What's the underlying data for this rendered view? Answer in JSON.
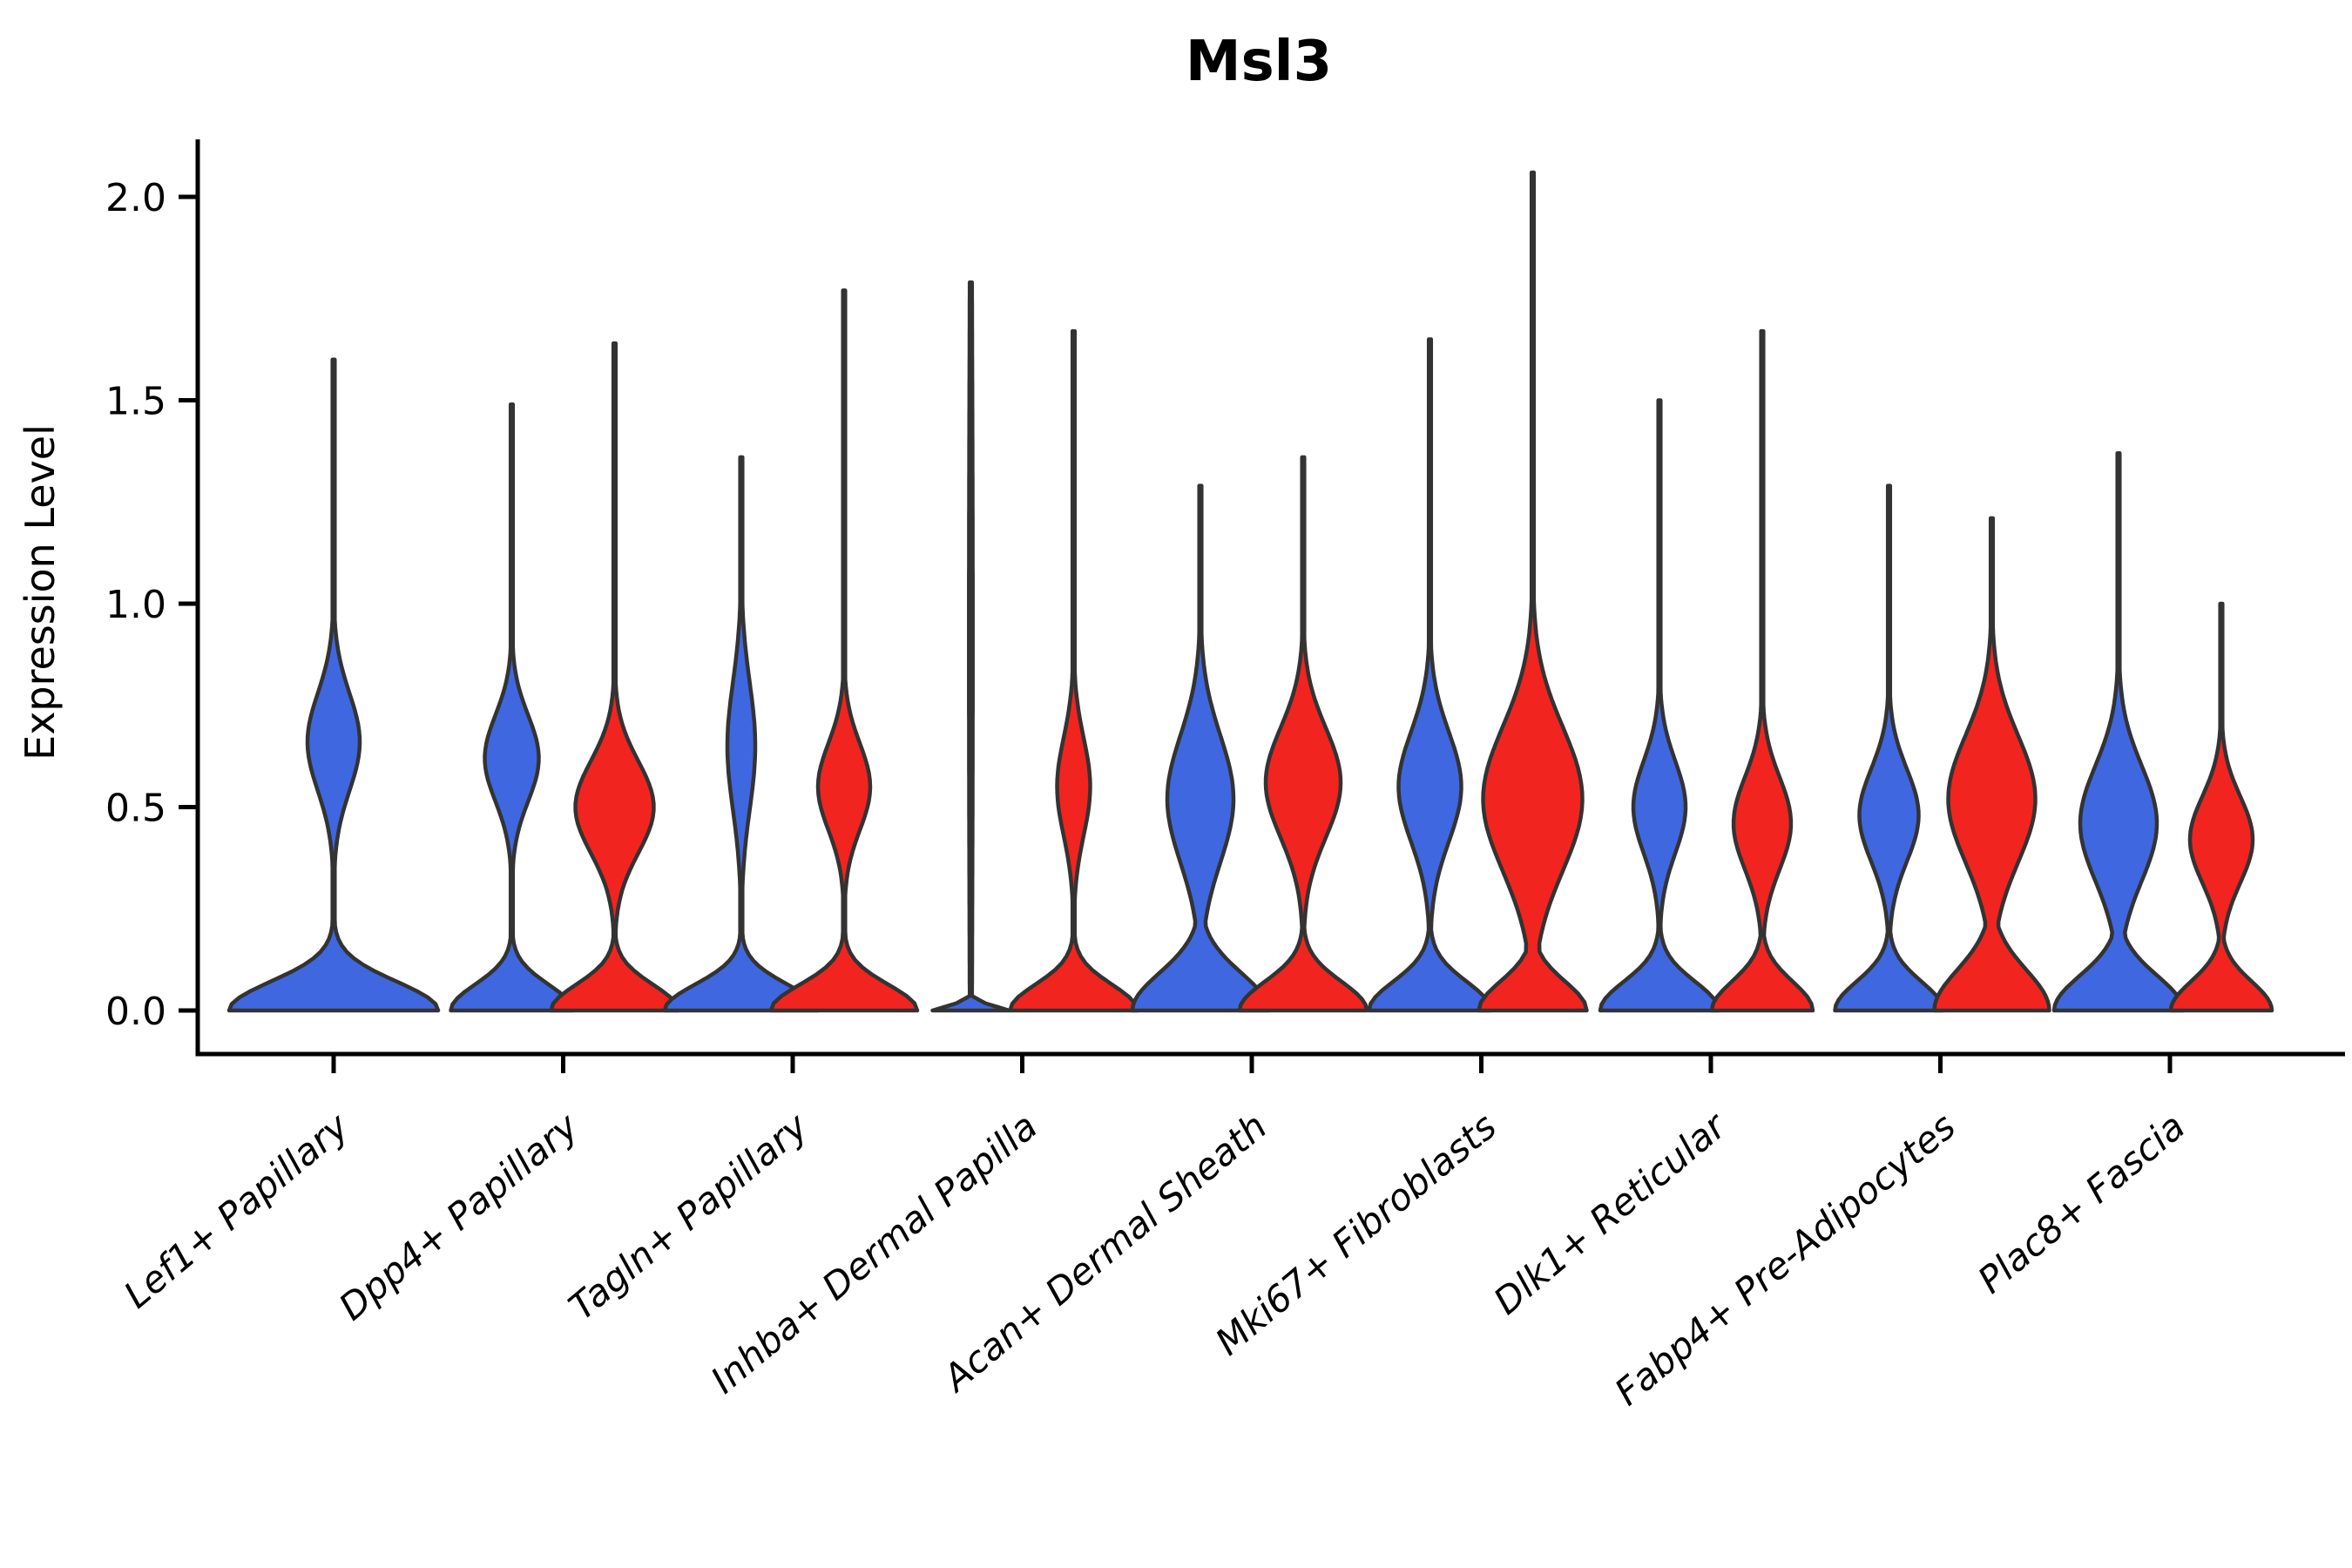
{
  "chart_data": {
    "type": "violin",
    "title": "Msl3",
    "ylabel": "Expression Level",
    "xlabel": "",
    "ylim": [
      0.0,
      2.1
    ],
    "y_ticks": [
      0.0,
      0.5,
      1.0,
      1.5,
      2.0
    ],
    "y_tick_labels": [
      "0.0",
      "0.5",
      "1.0",
      "1.5",
      "2.0"
    ],
    "legend": "none",
    "grid": false,
    "split_series": [
      "blue",
      "red"
    ],
    "palette": {
      "blue": "#3F67E0",
      "red": "#F2241F",
      "outline": "#333333",
      "axis": "#000000"
    },
    "categories": [
      "Lef1+ Papillary",
      "Dpp4+ Papillary",
      "Tagln+ Papillary",
      "Inhba+ Dermal Papilla",
      "Acan+ Dermal Sheath",
      "Mki67+ Fibroblasts",
      "Dlk1+ Reticular",
      "Fabp4+ Pre-Adipocytes",
      "Plac8+ Fascia"
    ],
    "groups": [
      {
        "label": "Lef1+ Papillary",
        "violins": [
          {
            "split": "blue",
            "max_expression": 1.6,
            "base_halfwidth": 120,
            "base_sigma": 0.1,
            "bulge_halfwidth": 30,
            "bulge_center": 0.66,
            "bulge_sigma": 0.17
          }
        ]
      },
      {
        "label": "Dpp4+ Papillary",
        "violins": [
          {
            "split": "blue",
            "max_expression": 1.49,
            "base_halfwidth": 70,
            "base_sigma": 0.09,
            "bulge_halfwidth": 31,
            "bulge_center": 0.62,
            "bulge_sigma": 0.15
          },
          {
            "split": "red",
            "max_expression": 1.64,
            "base_halfwidth": 73,
            "base_sigma": 0.09,
            "bulge_halfwidth": 45,
            "bulge_center": 0.5,
            "bulge_sigma": 0.16
          }
        ]
      },
      {
        "label": "Tagln+ Papillary",
        "violins": [
          {
            "split": "blue",
            "max_expression": 1.36,
            "base_halfwidth": 88,
            "base_sigma": 0.09,
            "bulge_halfwidth": 16,
            "bulge_center": 0.65,
            "bulge_sigma": 0.22
          },
          {
            "split": "red",
            "max_expression": 1.77,
            "base_halfwidth": 84,
            "base_sigma": 0.09,
            "bulge_halfwidth": 30,
            "bulge_center": 0.55,
            "bulge_sigma": 0.15
          }
        ]
      },
      {
        "label": "Inhba+ Dermal Papilla",
        "violins": [
          {
            "split": "blue",
            "max_expression": 1.79,
            "base_halfwidth": 44,
            "base_sigma": 0.018,
            "bulge_halfwidth": 2.2,
            "bulge_center": 0.9,
            "bulge_sigma": 1.2
          },
          {
            "split": "red",
            "max_expression": 1.67,
            "base_halfwidth": 73,
            "base_sigma": 0.09,
            "bulge_halfwidth": 19,
            "bulge_center": 0.55,
            "bulge_sigma": 0.17
          }
        ]
      },
      {
        "label": "Acan+ Dermal Sheath",
        "violins": [
          {
            "split": "blue",
            "max_expression": 1.29,
            "base_halfwidth": 78,
            "base_sigma": 0.13,
            "bulge_halfwidth": 38,
            "bulge_center": 0.52,
            "bulge_sigma": 0.22
          },
          {
            "split": "red",
            "max_expression": 1.36,
            "base_halfwidth": 73,
            "base_sigma": 0.1,
            "bulge_halfwidth": 43,
            "bulge_center": 0.56,
            "bulge_sigma": 0.19
          }
        ]
      },
      {
        "label": "Mki67+ Fibroblasts",
        "violins": [
          {
            "split": "blue",
            "max_expression": 1.65,
            "base_halfwidth": 70,
            "base_sigma": 0.1,
            "bulge_halfwidth": 36,
            "bulge_center": 0.55,
            "bulge_sigma": 0.19
          },
          {
            "split": "red",
            "max_expression": 2.06,
            "base_halfwidth": 62,
            "base_sigma": 0.1,
            "bulge_halfwidth": 57,
            "bulge_center": 0.52,
            "bulge_sigma": 0.25
          }
        ]
      },
      {
        "label": "Dlk1+ Reticular",
        "violins": [
          {
            "split": "blue",
            "max_expression": 1.5,
            "base_halfwidth": 68,
            "base_sigma": 0.1,
            "bulge_halfwidth": 30,
            "bulge_center": 0.5,
            "bulge_sigma": 0.16
          },
          {
            "split": "red",
            "max_expression": 1.67,
            "base_halfwidth": 58,
            "base_sigma": 0.1,
            "bulge_halfwidth": 33,
            "bulge_center": 0.46,
            "bulge_sigma": 0.16
          }
        ]
      },
      {
        "label": "Fabp4+ Pre-Adipocytes",
        "violins": [
          {
            "split": "blue",
            "max_expression": 1.29,
            "base_halfwidth": 62,
            "base_sigma": 0.1,
            "bulge_halfwidth": 34,
            "bulge_center": 0.48,
            "bulge_sigma": 0.16
          },
          {
            "split": "red",
            "max_expression": 1.21,
            "base_halfwidth": 66,
            "base_sigma": 0.14,
            "bulge_halfwidth": 50,
            "bulge_center": 0.52,
            "bulge_sigma": 0.22
          }
        ]
      },
      {
        "label": "Plac8+ Fascia",
        "violins": [
          {
            "split": "blue",
            "max_expression": 1.37,
            "base_halfwidth": 74,
            "base_sigma": 0.12,
            "bulge_halfwidth": 44,
            "bulge_center": 0.46,
            "bulge_sigma": 0.2
          },
          {
            "split": "red",
            "max_expression": 1.0,
            "base_halfwidth": 58,
            "base_sigma": 0.1,
            "bulge_halfwidth": 36,
            "bulge_center": 0.42,
            "bulge_sigma": 0.15
          }
        ]
      }
    ]
  }
}
